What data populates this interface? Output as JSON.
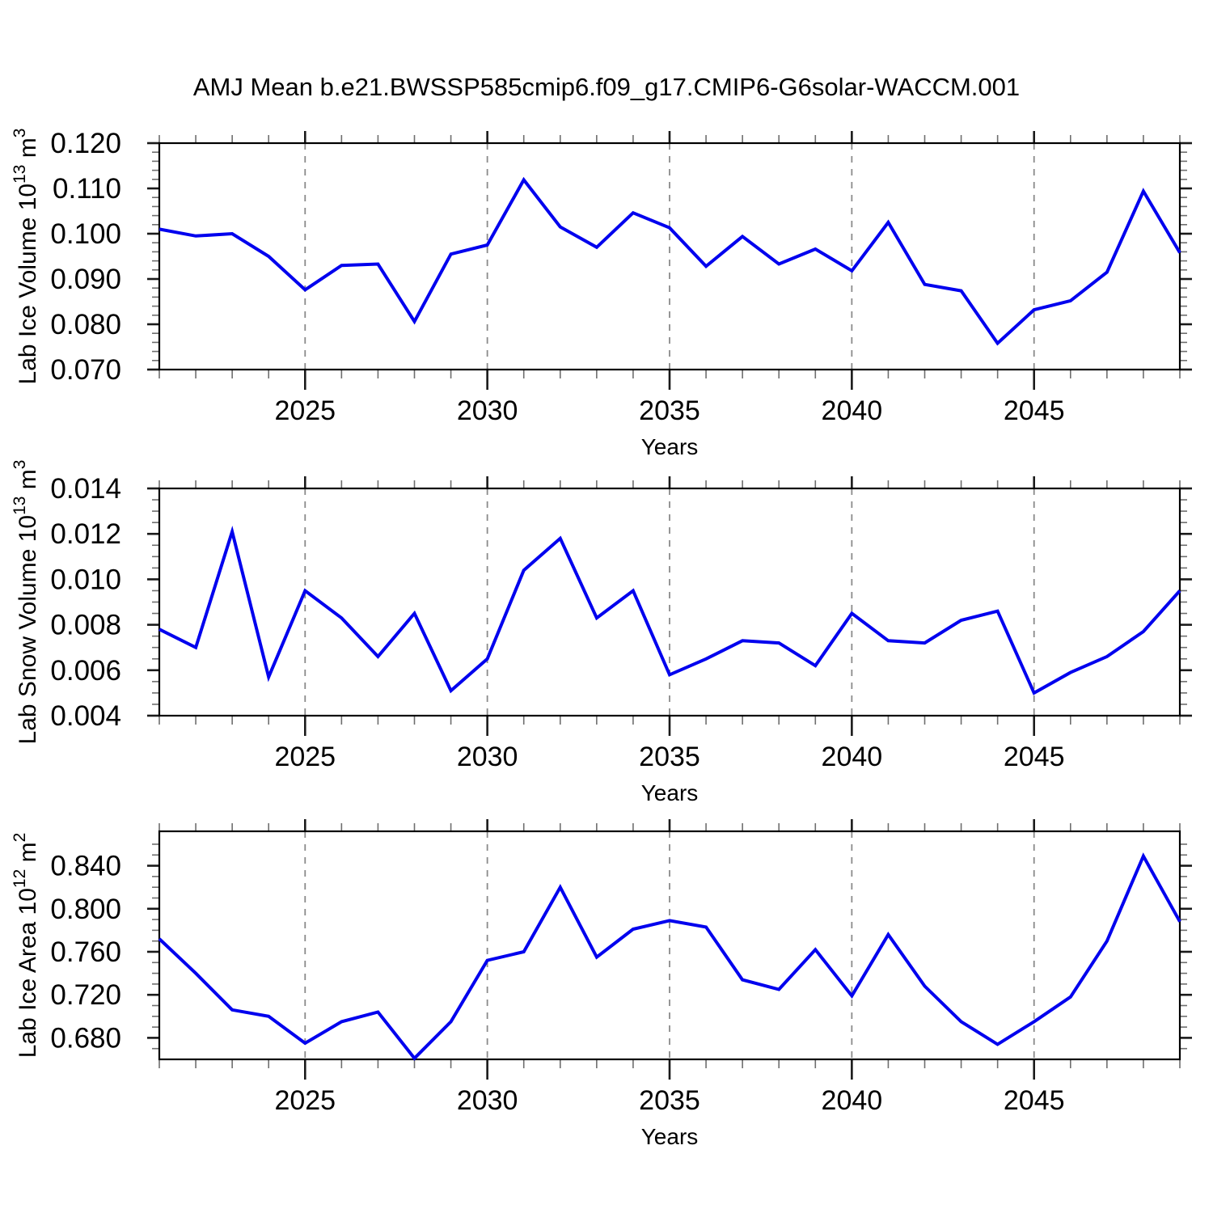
{
  "title": "AMJ Mean b.e21.BWSSP585cmip6.f09_g17.CMIP6-G6solar-WACCM.001",
  "xlabel": "Years",
  "line_color": "#0000ee",
  "grid_color": "#8a8a8a",
  "chart_data": [
    {
      "type": "line",
      "ylabel_plain": "Lab Ice Volume 10^13 m^3",
      "ylabel_segments": [
        {
          "t": "Lab Ice Volume 10"
        },
        {
          "t": "13",
          "sup": true
        },
        {
          "t": " m"
        },
        {
          "t": "3",
          "sup": true
        }
      ],
      "xlabel": "Years",
      "x": [
        2021,
        2022,
        2023,
        2024,
        2025,
        2026,
        2027,
        2028,
        2029,
        2030,
        2031,
        2032,
        2033,
        2034,
        2035,
        2036,
        2037,
        2038,
        2039,
        2040,
        2041,
        2042,
        2043,
        2044,
        2045,
        2046,
        2047,
        2048,
        2049
      ],
      "values": [
        0.101,
        0.0995,
        0.1,
        0.095,
        0.0876,
        0.093,
        0.0933,
        0.0806,
        0.0955,
        0.0975,
        0.1119,
        0.1015,
        0.097,
        0.1046,
        0.1013,
        0.0928,
        0.0994,
        0.0933,
        0.0966,
        0.0918,
        0.1025,
        0.0888,
        0.0874,
        0.0758,
        0.0832,
        0.0852,
        0.0915,
        0.1094,
        0.0958
      ],
      "ylim": [
        0.07,
        0.12
      ],
      "yticks": [
        "0.120",
        "0.110",
        "0.100",
        "0.090",
        "0.080",
        "0.070"
      ],
      "ymajor_step": 0.01,
      "yminor_step": 0.002,
      "xlim": [
        2021,
        2049
      ],
      "xticks_major": [
        "2025",
        "2030",
        "2035",
        "2040",
        "2045"
      ],
      "xminor_step": 1,
      "grid": "dashed vertical lines at major x ticks"
    },
    {
      "type": "line",
      "ylabel_plain": "Lab Snow Volume 10^13 m^3",
      "ylabel_segments": [
        {
          "t": "Lab Snow Volume 10"
        },
        {
          "t": "13",
          "sup": true
        },
        {
          "t": " m"
        },
        {
          "t": "3",
          "sup": true
        }
      ],
      "xlabel": "Years",
      "x": [
        2021,
        2022,
        2023,
        2024,
        2025,
        2026,
        2027,
        2028,
        2029,
        2030,
        2031,
        2032,
        2033,
        2034,
        2035,
        2036,
        2037,
        2038,
        2039,
        2040,
        2041,
        2042,
        2043,
        2044,
        2045,
        2046,
        2047,
        2048,
        2049
      ],
      "values": [
        0.0078,
        0.007,
        0.0121,
        0.0057,
        0.0095,
        0.0083,
        0.0066,
        0.0085,
        0.0051,
        0.0065,
        0.0104,
        0.0118,
        0.0083,
        0.0095,
        0.0058,
        0.0065,
        0.0073,
        0.0072,
        0.0062,
        0.0085,
        0.0073,
        0.0072,
        0.0082,
        0.0086,
        0.005,
        0.0059,
        0.0066,
        0.0077,
        0.0095
      ],
      "ylim": [
        0.004,
        0.014
      ],
      "yticks": [
        "0.014",
        "0.012",
        "0.010",
        "0.008",
        "0.006",
        "0.004"
      ],
      "ymajor_step": 0.002,
      "yminor_step": 0.0005,
      "xlim": [
        2021,
        2049
      ],
      "xticks_major": [
        "2025",
        "2030",
        "2035",
        "2040",
        "2045"
      ],
      "xminor_step": 1,
      "grid": "dashed vertical lines at major x ticks"
    },
    {
      "type": "line",
      "ylabel_plain": "Lab Ice Area 10^12 m^2",
      "ylabel_segments": [
        {
          "t": "Lab Ice Area 10"
        },
        {
          "t": "12",
          "sup": true
        },
        {
          "t": " m"
        },
        {
          "t": "2",
          "sup": true
        }
      ],
      "xlabel": "Years",
      "x": [
        2021,
        2022,
        2023,
        2024,
        2025,
        2026,
        2027,
        2028,
        2029,
        2030,
        2031,
        2032,
        2033,
        2034,
        2035,
        2036,
        2037,
        2038,
        2039,
        2040,
        2041,
        2042,
        2043,
        2044,
        2045,
        2046,
        2047,
        2048,
        2049
      ],
      "values": [
        0.772,
        0.74,
        0.706,
        0.7,
        0.675,
        0.695,
        0.704,
        0.661,
        0.695,
        0.752,
        0.76,
        0.82,
        0.755,
        0.781,
        0.789,
        0.783,
        0.734,
        0.725,
        0.762,
        0.719,
        0.776,
        0.728,
        0.695,
        0.674,
        0.695,
        0.718,
        0.77,
        0.849,
        0.788
      ],
      "ylim": [
        0.66,
        0.872
      ],
      "yticks": [
        "0.840",
        "0.800",
        "0.760",
        "0.720",
        "0.680"
      ],
      "ymajor_step": 0.04,
      "yminor_step": 0.01,
      "xlim": [
        2021,
        2049
      ],
      "xticks_major": [
        "2025",
        "2030",
        "2035",
        "2040",
        "2045"
      ],
      "xminor_step": 1,
      "grid": "dashed vertical lines at major x ticks"
    }
  ]
}
